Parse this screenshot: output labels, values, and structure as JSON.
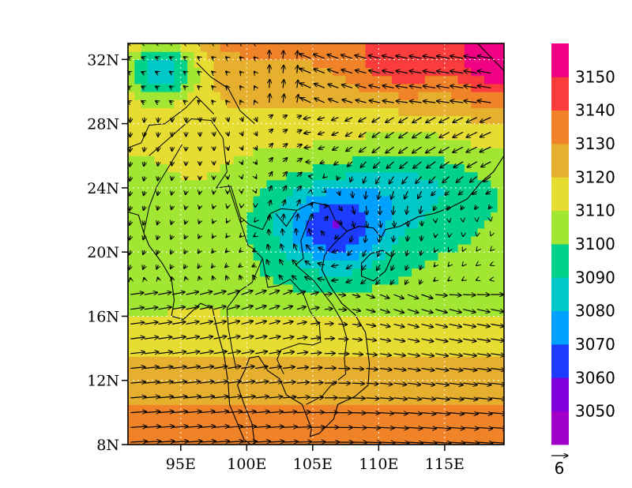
{
  "chart_data": {
    "type": "map",
    "x_axis": {
      "range": [
        91,
        119.5
      ],
      "ticks": [
        {
          "value": 95,
          "label": "95E"
        },
        {
          "value": 100,
          "label": "100E"
        },
        {
          "value": 105,
          "label": "105E"
        },
        {
          "value": 110,
          "label": "110E"
        },
        {
          "value": 115,
          "label": "115E"
        }
      ]
    },
    "y_axis": {
      "range": [
        8,
        33
      ],
      "ticks": [
        {
          "value": 8,
          "label": "8N"
        },
        {
          "value": 12,
          "label": "12N"
        },
        {
          "value": 16,
          "label": "16N"
        },
        {
          "value": 20,
          "label": "20N"
        },
        {
          "value": 24,
          "label": "24N"
        },
        {
          "value": 28,
          "label": "28N"
        },
        {
          "value": 32,
          "label": "32N"
        }
      ]
    },
    "grid": true,
    "fill_levels": [
      3040,
      3050,
      3060,
      3070,
      3080,
      3090,
      3100,
      3110,
      3120,
      3130,
      3140,
      3150,
      3160
    ],
    "level_labels": [
      "3050",
      "3060",
      "3070",
      "3080",
      "3090",
      "3100",
      "3110",
      "3120",
      "3130",
      "3140",
      "3150"
    ],
    "level_colors": [
      "#a000c8",
      "#8200dc",
      "#1e3cff",
      "#00a0ff",
      "#00c8c8",
      "#00d28c",
      "#a0e632",
      "#e6dc32",
      "#e6af2d",
      "#f08228",
      "#fa3c3c",
      "#f00082"
    ],
    "height_field_note": "",
    "low_center": {
      "lon": 106.5,
      "lat": 21.5,
      "value": 3050
    },
    "reference_vector": {
      "label": "6",
      "magnitude": 6
    },
    "legend_placement": "right"
  }
}
